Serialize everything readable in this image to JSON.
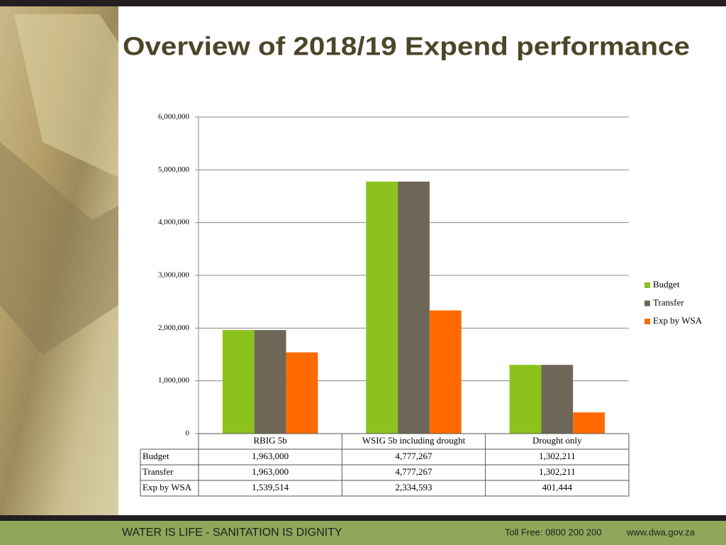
{
  "chart_data": {
    "type": "bar",
    "title": "Overview of 2018/19 Expend performance",
    "categories": [
      "RBIG 5b",
      "WSIG 5b including drought",
      "Drought only"
    ],
    "series": [
      {
        "name": "Budget",
        "color": "#8cc21c",
        "values": [
          1963000,
          4777267,
          1302211
        ],
        "value_labels": [
          "1,963,000",
          "4,777,267",
          "1,302,211"
        ]
      },
      {
        "name": "Transfer",
        "color": "#6e6757",
        "values": [
          1963000,
          4777267,
          1302211
        ],
        "value_labels": [
          "1,963,000",
          "4,777,267",
          "1,302,211"
        ]
      },
      {
        "name": "Exp by WSA",
        "color": "#ff6a00",
        "values": [
          1539514,
          2334593,
          401444
        ],
        "value_labels": [
          "1,539,514",
          "2,334,593",
          "401,444"
        ]
      }
    ],
    "ylim": [
      0,
      6000000
    ],
    "yticks": [
      0,
      {
        "value": 1000000,
        "label": "1,000,000"
      },
      {
        "value": 2000000,
        "label": "2,000,000"
      },
      {
        "value": 3000000,
        "label": "3,000,000"
      },
      {
        "value": 4000000,
        "label": "4,000,000"
      },
      {
        "value": 5000000,
        "label": "5,000,000"
      },
      {
        "value": 6000000,
        "label": "6,000,000"
      }
    ],
    "grid": true,
    "legend": "right"
  },
  "footer": {
    "slogan": "WATER IS LIFE - SANITATION IS DIGNITY",
    "phone": "Toll Free: 0800 200 200",
    "website": "www.dwa.gov.za"
  }
}
